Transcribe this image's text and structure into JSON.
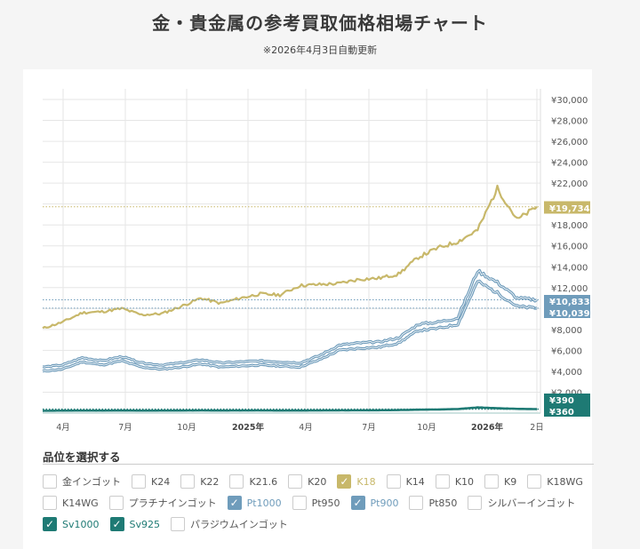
{
  "header": {
    "title": "金・貴金属の参考買取価格相場チャート",
    "subtitle": "※2026年4月3日自動更新"
  },
  "colors": {
    "k18": "#c8b86a",
    "pt": "#6f9cbb",
    "sv": "#1e7a74",
    "grid": "#e6e6e6"
  },
  "chart_data": {
    "type": "line",
    "title": "金・貴金属の参考買取価格相場チャート",
    "xlabel": "",
    "ylabel": "",
    "ylim": [
      0,
      30000
    ],
    "grid": true,
    "y_ticks": [
      "¥30,000",
      "¥28,000",
      "¥26,000",
      "¥24,000",
      "¥22,000",
      "¥20,000",
      "¥18,000",
      "¥16,000",
      "¥14,000",
      "¥12,000",
      "¥10,000",
      "¥8,000",
      "¥6,000",
      "¥4,000",
      "¥2,000"
    ],
    "x_ticks": [
      {
        "label": "4月",
        "bold": false
      },
      {
        "label": "7月",
        "bold": false
      },
      {
        "label": "10月",
        "bold": false
      },
      {
        "label": "2025年",
        "bold": true
      },
      {
        "label": "4月",
        "bold": false
      },
      {
        "label": "7月",
        "bold": false
      },
      {
        "label": "10月",
        "bold": false
      },
      {
        "label": "2026年",
        "bold": true
      },
      {
        "label": "2日",
        "bold": false
      }
    ],
    "x": [
      "2024-03",
      "2024-04",
      "2024-05",
      "2024-06",
      "2024-07",
      "2024-08",
      "2024-09",
      "2024-10",
      "2024-11",
      "2024-12",
      "2025-01",
      "2025-02",
      "2025-03",
      "2025-04",
      "2025-05",
      "2025-06",
      "2025-07",
      "2025-08",
      "2025-09",
      "2025-10",
      "2025-11",
      "2025-12",
      "2026-01",
      "2026-02",
      "2026-03",
      "2026-04"
    ],
    "series": [
      {
        "name": "K18",
        "color": "#c8b86a",
        "last": "¥19,734",
        "values": [
          8100,
          8700,
          9600,
          9700,
          10000,
          9400,
          9500,
          10200,
          11000,
          10500,
          11000,
          11400,
          11300,
          12200,
          12300,
          12400,
          12800,
          12900,
          13300,
          14900,
          15800,
          16400,
          17500,
          21500,
          18500,
          19734
        ]
      },
      {
        "name": "Pt1000",
        "color": "#6f9cbb",
        "last": "¥10,833",
        "values": [
          4400,
          4600,
          5300,
          5000,
          5400,
          4800,
          4600,
          4800,
          5100,
          4800,
          4900,
          5000,
          4900,
          4800,
          5500,
          6500,
          6700,
          6800,
          7200,
          8500,
          8700,
          9100,
          13600,
          12500,
          11000,
          10833
        ]
      },
      {
        "name": "Pt900",
        "color": "#6f9cbb",
        "last": "¥10,039",
        "values": [
          4000,
          4200,
          4900,
          4600,
          5000,
          4400,
          4200,
          4400,
          4700,
          4400,
          4500,
          4600,
          4500,
          4400,
          5100,
          6000,
          6200,
          6300,
          6700,
          7900,
          8100,
          8500,
          12600,
          11500,
          10200,
          10039
        ]
      },
      {
        "name": "Sv1000",
        "color": "#1e7a74",
        "last": "¥390",
        "values": [
          230,
          240,
          250,
          245,
          255,
          240,
          245,
          250,
          260,
          250,
          255,
          260,
          250,
          250,
          260,
          270,
          275,
          280,
          300,
          340,
          360,
          400,
          560,
          480,
          420,
          390
        ]
      },
      {
        "name": "Sv925",
        "color": "#1e7a74",
        "last": "¥360",
        "values": [
          210,
          220,
          230,
          225,
          235,
          220,
          225,
          230,
          240,
          230,
          235,
          240,
          230,
          230,
          240,
          250,
          255,
          260,
          275,
          310,
          330,
          370,
          520,
          440,
          390,
          360
        ]
      }
    ],
    "reference_lines": [
      19734,
      10833,
      10039,
      390,
      360
    ]
  },
  "selector": {
    "title": "品位を選択する",
    "rows": [
      [
        {
          "label": "金インゴット",
          "checked": false
        },
        {
          "label": "K24",
          "checked": false
        },
        {
          "label": "K22",
          "checked": false
        },
        {
          "label": "K21.6",
          "checked": false
        },
        {
          "label": "K20",
          "checked": false
        },
        {
          "label": "K18",
          "checked": true,
          "color": "#c8b86a"
        },
        {
          "label": "K14",
          "checked": false
        },
        {
          "label": "K10",
          "checked": false
        },
        {
          "label": "K9",
          "checked": false
        },
        {
          "label": "K18WG",
          "checked": false
        }
      ],
      [
        {
          "label": "K14WG",
          "checked": false
        },
        {
          "label": "プラチナインゴット",
          "checked": false
        },
        {
          "label": "Pt1000",
          "checked": true,
          "color": "#6f9cbb"
        },
        {
          "label": "Pt950",
          "checked": false
        },
        {
          "label": "Pt900",
          "checked": true,
          "color": "#6f9cbb"
        },
        {
          "label": "Pt850",
          "checked": false
        },
        {
          "label": "シルバーインゴット",
          "checked": false
        }
      ],
      [
        {
          "label": "Sv1000",
          "checked": true,
          "color": "#1e7a74"
        },
        {
          "label": "Sv925",
          "checked": true,
          "color": "#1e7a74"
        },
        {
          "label": "パラジウムインゴット",
          "checked": false
        }
      ]
    ]
  }
}
